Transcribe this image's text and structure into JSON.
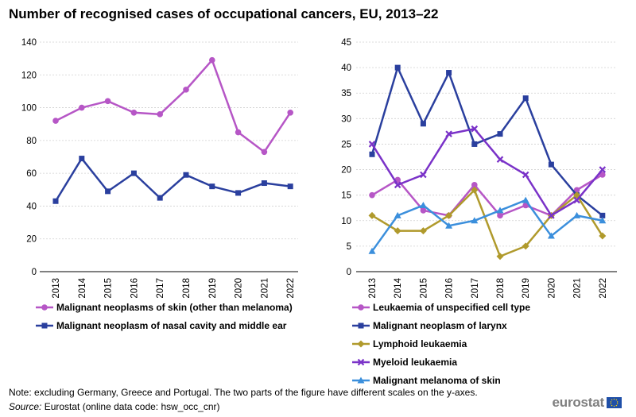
{
  "title": "Number of recognised cases of occupational cancers, EU, 2013–22",
  "note": "Note: excluding Germany, Greece and Portugal. The two parts of the figure have different scales on the y-axes.",
  "source_label": "Source:",
  "source_text": " Eurostat (online data code: hsw_occ_cnr)",
  "logo_text": "eurostat",
  "chart_data": [
    {
      "type": "line",
      "categories": [
        "2013",
        "2014",
        "2015",
        "2016",
        "2017",
        "2018",
        "2019",
        "2020",
        "2021",
        "2022"
      ],
      "ylim": [
        0,
        140
      ],
      "yticks": [
        0,
        20,
        40,
        60,
        80,
        100,
        120,
        140
      ],
      "grid": true,
      "series": [
        {
          "name": "Malignant neoplasms of skin (other than melanoma)",
          "color": "#b656c6",
          "marker": "circle",
          "values": [
            92,
            100,
            104,
            97,
            96,
            111,
            129,
            85,
            73,
            97
          ]
        },
        {
          "name": "Malignant neoplasm of nasal cavity and middle ear",
          "color": "#2a3f9e",
          "marker": "square",
          "values": [
            43,
            69,
            49,
            60,
            45,
            59,
            52,
            48,
            54,
            52
          ]
        }
      ]
    },
    {
      "type": "line",
      "categories": [
        "2013",
        "2014",
        "2015",
        "2016",
        "2017",
        "2018",
        "2019",
        "2020",
        "2021",
        "2022"
      ],
      "ylim": [
        0,
        45
      ],
      "yticks": [
        0,
        5,
        10,
        15,
        20,
        25,
        30,
        35,
        40,
        45
      ],
      "grid": true,
      "series": [
        {
          "name": "Leukaemia of unspecified cell type",
          "color": "#b656c6",
          "marker": "circle",
          "values": [
            15,
            18,
            12,
            11,
            17,
            11,
            13,
            11,
            16,
            19
          ]
        },
        {
          "name": "Malignant neoplasm of larynx",
          "color": "#2a3f9e",
          "marker": "square",
          "values": [
            23,
            40,
            29,
            39,
            25,
            27,
            34,
            21,
            15,
            11
          ]
        },
        {
          "name": "Lymphoid leukaemia",
          "color": "#b09a2c",
          "marker": "diamond",
          "values": [
            11,
            8,
            8,
            11,
            16,
            3,
            5,
            11,
            15,
            7
          ]
        },
        {
          "name": "Myeloid leukaemia",
          "color": "#7a32c8",
          "marker": "x",
          "values": [
            25,
            17,
            19,
            27,
            28,
            22,
            19,
            11,
            14,
            20
          ]
        },
        {
          "name": "Malignant melanoma of skin",
          "color": "#3b8fdc",
          "marker": "triangle",
          "values": [
            4,
            11,
            13,
            9,
            10,
            12,
            14,
            7,
            11,
            10
          ]
        }
      ]
    }
  ]
}
